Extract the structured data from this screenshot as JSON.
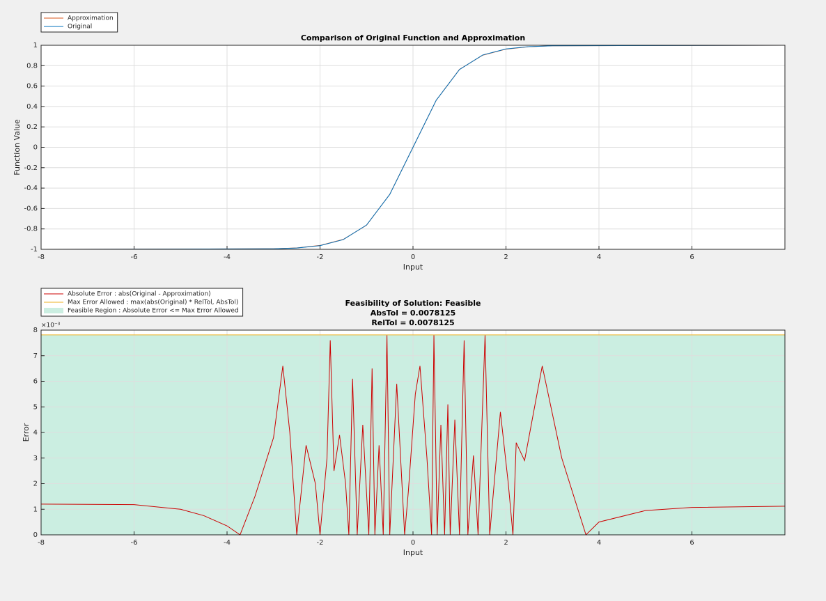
{
  "chart_data": [
    {
      "type": "line",
      "title": "Comparison of Original Function and Approximation",
      "xlabel": "Input",
      "ylabel": "Function Value",
      "x": [
        -8,
        -3,
        -2.5,
        -2,
        -1.5,
        -1,
        -0.5,
        0,
        0.5,
        1,
        1.5,
        2,
        2.5,
        3,
        8
      ],
      "series": [
        {
          "name": "Approximation",
          "color": "#d95319",
          "values": [
            -1,
            -0.995,
            -0.986,
            -0.962,
            -0.903,
            -0.764,
            -0.461,
            0,
            0.461,
            0.764,
            0.903,
            0.962,
            0.986,
            0.995,
            1
          ]
        },
        {
          "name": "Original",
          "color": "#0072bd",
          "values": [
            -1,
            -0.995,
            -0.987,
            -0.964,
            -0.905,
            -0.762,
            -0.462,
            0,
            0.462,
            0.762,
            0.905,
            0.964,
            0.987,
            0.995,
            1
          ]
        }
      ],
      "xlim": [
        -8,
        8
      ],
      "xticks": [
        -8,
        -6,
        -4,
        -2,
        0,
        2,
        4,
        6
      ],
      "ylim": [
        -1,
        1
      ],
      "yticks": [
        -1,
        -0.8,
        -0.6,
        -0.4,
        -0.2,
        0,
        0.2,
        0.4,
        0.6,
        0.8,
        1
      ],
      "grid": true,
      "legend_position": "top-left"
    },
    {
      "type": "line",
      "title": "Feasibility of Solution: Feasible",
      "subtitles": [
        "AbsTol = 0.0078125",
        "RelTol = 0.0078125"
      ],
      "xlabel": "Input",
      "ylabel": "Error",
      "y_exponent_label": "×10⁻³",
      "series": [
        {
          "name": "Absolute Error : abs(Original - Approximation)",
          "color": "#cc0000",
          "style": "line",
          "x": [
            -8,
            -6,
            -5,
            -4.5,
            -4,
            -3.72,
            -3.4,
            -3,
            -2.8,
            -2.65,
            -2.5,
            -2.3,
            -2.1,
            -2,
            -1.85,
            -1.78,
            -1.7,
            -1.58,
            -1.45,
            -1.38,
            -1.3,
            -1.2,
            -1.08,
            -0.95,
            -0.88,
            -0.82,
            -0.73,
            -0.64,
            -0.56,
            -0.5,
            -0.35,
            -0.18,
            -0.1,
            0.05,
            0.15,
            0.3,
            0.4,
            0.45,
            0.52,
            0.6,
            0.68,
            0.75,
            0.8,
            0.9,
            1,
            1.1,
            1.18,
            1.3,
            1.4,
            1.55,
            1.65,
            1.88,
            2.05,
            2.15,
            2.22,
            2.4,
            2.78,
            3.2,
            3.72,
            4,
            5,
            6,
            8
          ],
          "values": [
            1.2,
            1.18,
            1.0,
            0.75,
            0.35,
            0,
            1.5,
            3.8,
            6.6,
            4,
            0,
            3.5,
            2,
            0,
            3,
            7.6,
            2.5,
            3.9,
            2,
            0,
            6.1,
            0,
            4.3,
            0,
            6.5,
            0,
            3.5,
            0,
            7.8,
            0,
            5.9,
            0,
            1.7,
            5.5,
            6.6,
            3,
            0,
            7.8,
            0,
            4.3,
            0,
            5.1,
            0,
            4.5,
            0,
            7.6,
            0,
            3.1,
            0,
            7.8,
            0,
            4.8,
            2,
            0,
            3.6,
            2.9,
            6.6,
            3,
            0,
            0.5,
            0.95,
            1.07,
            1.12
          ]
        },
        {
          "name": "Max Error Allowed : max(abs(Original) * RelTol, AbsTol)",
          "color": "#edb120",
          "style": "line",
          "x": [
            -8,
            8
          ],
          "values": [
            7.8125,
            7.8125
          ]
        },
        {
          "name": "Feasible Region : Absolute Error <= Max Error Allowed",
          "color": "#cbeee1",
          "style": "area",
          "x": [
            -8,
            8
          ],
          "values": [
            7.8125,
            7.8125
          ]
        }
      ],
      "xlim": [
        -8,
        8
      ],
      "xticks": [
        -8,
        -6,
        -4,
        -2,
        0,
        2,
        4,
        6
      ],
      "ylim": [
        0,
        8
      ],
      "yticks": [
        0,
        1,
        2,
        3,
        4,
        5,
        6,
        7,
        8
      ],
      "grid": true,
      "legend_position": "top-left"
    }
  ]
}
